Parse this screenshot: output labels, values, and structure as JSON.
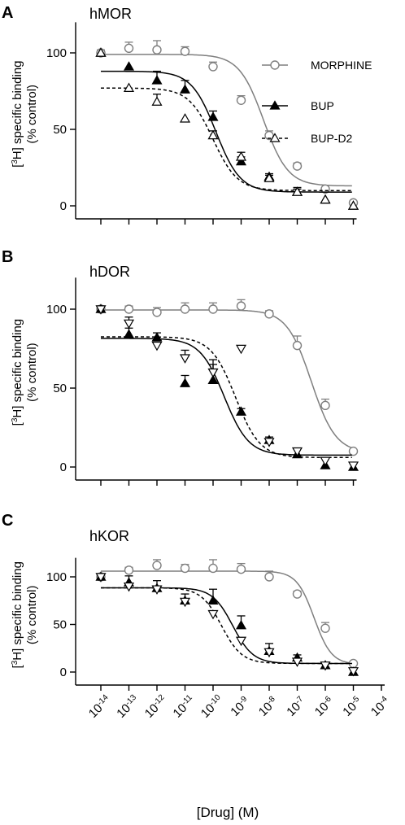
{
  "figure": {
    "xlabel": "[Drug] (M)",
    "ylabel_line1": "[3H] specific binding",
    "ylabel_line2": "(% control)",
    "colors": {
      "morphine": "#7f7f7f",
      "bup": "#000000",
      "bupd2": "#000000"
    }
  },
  "chart_data": [
    {
      "type": "scatter",
      "panel_letter": "A",
      "title": "hMOR",
      "xscale": "log",
      "xlim_log10": [
        -14,
        -5
      ],
      "ylim": [
        0,
        120
      ],
      "yticks": [
        0,
        50,
        100
      ],
      "legend": {
        "placement": "top-right",
        "entries": [
          "MORPHINE",
          "BUP",
          "BUP-D2"
        ]
      },
      "series": [
        {
          "name": "MORPHINE",
          "marker": "open-circle",
          "line": "solid-gray",
          "x_log10": [
            -14,
            -13,
            -12,
            -11,
            -10,
            -9,
            -8,
            -7,
            -6,
            -5
          ],
          "y": [
            100,
            103,
            102,
            101,
            91,
            69,
            46,
            26,
            11,
            2
          ],
          "err": [
            2,
            4,
            6,
            3,
            3,
            3,
            3,
            2,
            0,
            0
          ],
          "fit": {
            "top": 99,
            "bottom": 13,
            "logEC50": -8.2,
            "hill": 1
          }
        },
        {
          "name": "BUP",
          "marker": "filled-up-triangle",
          "line": "solid-black",
          "x_log10": [
            -14,
            -13,
            -12,
            -11,
            -10,
            -9,
            -8,
            -7,
            -6,
            -5
          ],
          "y": [
            100,
            91,
            82,
            76,
            58,
            29,
            19,
            9,
            4,
            0
          ],
          "err": [
            0,
            0,
            6,
            6,
            4,
            3,
            2,
            3,
            0,
            0
          ],
          "fit": {
            "top": 88,
            "bottom": 9,
            "logEC50": -9.9,
            "hill": 1
          }
        },
        {
          "name": "BUP-D2",
          "marker": "open-up-triangle",
          "line": "dashed-black",
          "x_log10": [
            -14,
            -13,
            -12,
            -11,
            -10,
            -9,
            -8,
            -7,
            -6,
            -5
          ],
          "y": [
            100,
            77,
            68,
            57,
            46,
            32,
            18,
            9,
            4,
            0
          ],
          "err": [
            0,
            0,
            5,
            0,
            3,
            3,
            2,
            2,
            0,
            0
          ],
          "fit": {
            "top": 77,
            "bottom": 10,
            "logEC50": -10,
            "hill": 1
          }
        }
      ]
    },
    {
      "type": "scatter",
      "panel_letter": "B",
      "title": "hDOR",
      "xscale": "log",
      "xlim_log10": [
        -14,
        -5
      ],
      "ylim": [
        0,
        120
      ],
      "yticks": [
        0,
        50,
        100
      ],
      "series": [
        {
          "name": "MORPHINE",
          "marker": "open-circle",
          "line": "solid-gray",
          "x_log10": [
            -14,
            -13,
            -12,
            -11,
            -10,
            -9,
            -8,
            -7,
            -6,
            -5
          ],
          "y": [
            100,
            100,
            98,
            100,
            100,
            102,
            97,
            77,
            39,
            10
          ],
          "err": [
            2,
            2,
            3,
            4,
            4,
            4,
            2,
            6,
            4,
            0
          ],
          "fit": {
            "top": 99.5,
            "bottom": 9,
            "logEC50": -6.5,
            "hill": 1
          }
        },
        {
          "name": "BUP",
          "marker": "filled-up-triangle",
          "line": "solid-black",
          "x_log10": [
            -14,
            -13,
            -12,
            -11,
            -10,
            -9,
            -8,
            -7,
            -6,
            -5
          ],
          "y": [
            100,
            84,
            82,
            53,
            55,
            35,
            17,
            8,
            1,
            0
          ],
          "err": [
            0,
            4,
            3,
            5,
            10,
            2,
            2,
            0,
            0,
            0
          ],
          "fit": {
            "top": 81.5,
            "bottom": 7.5,
            "logEC50": -9.6,
            "hill": 1
          }
        },
        {
          "name": "BUP-D2",
          "marker": "open-down-triangle",
          "line": "dashed-black",
          "x_log10": [
            -14,
            -13,
            -12,
            -11,
            -10,
            -9,
            -8,
            -7,
            -6,
            -5
          ],
          "y": [
            100,
            91,
            77,
            69,
            60,
            75,
            16,
            10,
            4,
            1
          ],
          "err": [
            0,
            4,
            0,
            5,
            8,
            0,
            2,
            2,
            0,
            0
          ],
          "fit": {
            "top": 82.5,
            "bottom": 6,
            "logEC50": -9.2,
            "hill": 1
          }
        }
      ]
    },
    {
      "type": "scatter",
      "panel_letter": "C",
      "title": "hKOR",
      "xscale": "log",
      "xlim_log10": [
        -14,
        -4
      ],
      "ylim": [
        0,
        120
      ],
      "yticks": [
        0,
        50,
        100
      ],
      "xticks_log10": [
        -14,
        -13,
        -12,
        -11,
        -10,
        -9,
        -8,
        -7,
        -6,
        -5,
        -4
      ],
      "series": [
        {
          "name": "MORPHINE",
          "marker": "open-circle",
          "line": "solid-gray",
          "x_log10": [
            -14,
            -13,
            -12,
            -11,
            -10,
            -9,
            -8,
            -7,
            -6,
            -5
          ],
          "y": [
            100,
            107,
            112,
            109,
            109,
            108,
            100,
            82,
            46,
            9
          ],
          "err": [
            2,
            3,
            6,
            4,
            9,
            6,
            6,
            3,
            6,
            0
          ],
          "fit": {
            "top": 106,
            "bottom": 8,
            "logEC50": -6.4,
            "hill": 1.4
          }
        },
        {
          "name": "BUP",
          "marker": "filled-up-triangle",
          "line": "solid-black",
          "x_log10": [
            -14,
            -13,
            -12,
            -11,
            -10,
            -9,
            -8,
            -7,
            -6,
            -5
          ],
          "y": [
            100,
            94,
            88,
            75,
            75,
            49,
            22,
            15,
            7,
            0
          ],
          "err": [
            0,
            7,
            8,
            7,
            12,
            10,
            8,
            3,
            0,
            0
          ],
          "fit": {
            "top": 88.5,
            "bottom": 9,
            "logEC50": -9.3,
            "hill": 1.2
          }
        },
        {
          "name": "BUP-D2",
          "marker": "open-down-triangle",
          "line": "dashed-black",
          "x_log10": [
            -14,
            -13,
            -12,
            -11,
            -10,
            -9,
            -8,
            -7,
            -6,
            -5
          ],
          "y": [
            100,
            90,
            87,
            74,
            61,
            33,
            21,
            11,
            7,
            1
          ],
          "err": [
            0,
            0,
            0,
            0,
            0,
            3,
            0,
            0,
            0,
            0
          ],
          "fit": {
            "top": 88.5,
            "bottom": 9,
            "logEC50": -9.7,
            "hill": 1.2
          }
        }
      ]
    }
  ]
}
